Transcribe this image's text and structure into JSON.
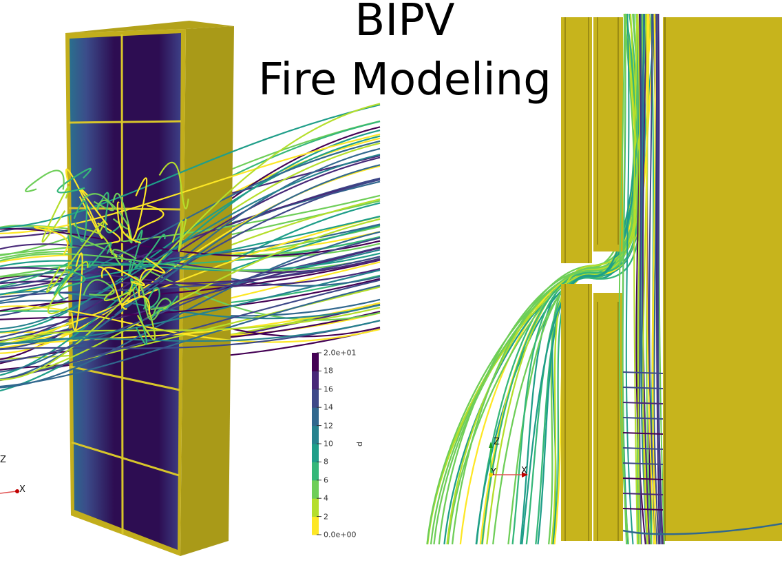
{
  "title": {
    "line1": "BIPV",
    "line2": "Fire Modeling"
  },
  "colorbar": {
    "variable": "p",
    "range": [
      0,
      20
    ],
    "tick_labels": [
      "0.0e+00",
      "2",
      "4",
      "6",
      "8",
      "10",
      "12",
      "14",
      "16",
      "18",
      "2.0e+01"
    ],
    "colors": [
      "#fde725",
      "#b5de2b",
      "#6ece58",
      "#35b779",
      "#1f9e89",
      "#26828e",
      "#31688e",
      "#3e4989",
      "#482878",
      "#440154"
    ]
  },
  "left_view": {
    "axes": {
      "z": "Z",
      "x": "X"
    }
  },
  "right_view": {
    "axes": {
      "z": "Z",
      "y": "Y",
      "x": "X"
    }
  },
  "colors": {
    "panel_yellow": "#c7b41c",
    "panel_side": "#a99a18",
    "interior_dark": "#2a0a4a"
  }
}
